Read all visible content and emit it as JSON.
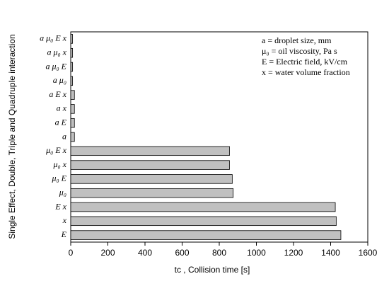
{
  "chart_data": {
    "type": "bar",
    "orientation": "horizontal",
    "categories": [
      "a μ₀ E x",
      "a μ₀ x",
      "a μ₀ E",
      "a μ₀",
      "a E x",
      "a x",
      "a E",
      "a",
      "μ₀ E x",
      "μ₀ x",
      "μ₀ E",
      "μ₀",
      "E x",
      "x",
      "E"
    ],
    "values": [
      10,
      10,
      10,
      10,
      20,
      20,
      20,
      20,
      855,
      855,
      870,
      875,
      1425,
      1430,
      1455
    ],
    "color": "#c0c0c0",
    "xlim": [
      0,
      1600
    ],
    "xticks": [
      0,
      200,
      400,
      600,
      800,
      1000,
      1200,
      1400,
      1600
    ],
    "x_label": "tc , Collision time [s]",
    "y_label": "Single Effect, Double, Triple and Quadruple interaction",
    "annotations": [
      "a = droplet size, mm",
      "μ₀ = oil viscosity, Pa s",
      "E = Electric field, kV/cm",
      "x = water volume fraction"
    ]
  }
}
